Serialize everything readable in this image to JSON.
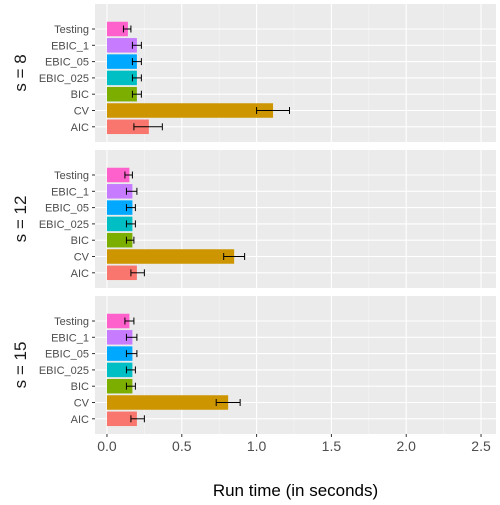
{
  "chart_data": {
    "type": "bar",
    "orientation": "horizontal",
    "with_error_bars": true,
    "xlabel": "Run time (in seconds)",
    "ylabel": "",
    "xlim": [
      -0.08,
      2.6
    ],
    "x_ticks": [
      0,
      0.5,
      1,
      1.5,
      2,
      2.5
    ],
    "x_tick_labels": [
      "0.0",
      "0.5",
      "1.0",
      "1.5",
      "2.0",
      "2.5"
    ],
    "categories": [
      "Testing",
      "EBIC_1",
      "EBIC_05",
      "EBIC_025",
      "BIC",
      "CV",
      "AIC"
    ],
    "colors": {
      "Testing": "#FF61CC",
      "EBIC_1": "#C77CFF",
      "EBIC_05": "#00A9FF",
      "EBIC_025": "#00BFC4",
      "BIC": "#7CAE00",
      "CV": "#CD9600",
      "AIC": "#F8766D"
    },
    "grid": true,
    "legend": "none",
    "panels": [
      {
        "label": "s = 8",
        "values": [
          0.14,
          0.2,
          0.2,
          0.2,
          0.2,
          1.11,
          0.28
        ],
        "err_low": [
          0.11,
          0.17,
          0.17,
          0.17,
          0.17,
          1.0,
          0.18
        ],
        "err_high": [
          0.16,
          0.23,
          0.23,
          0.23,
          0.23,
          1.22,
          0.37
        ]
      },
      {
        "label": "s = 12",
        "values": [
          0.15,
          0.17,
          0.17,
          0.17,
          0.17,
          0.85,
          0.2
        ],
        "err_low": [
          0.12,
          0.13,
          0.13,
          0.13,
          0.13,
          0.78,
          0.16
        ],
        "err_high": [
          0.17,
          0.2,
          0.19,
          0.19,
          0.18,
          0.92,
          0.25
        ]
      },
      {
        "label": "s = 15",
        "values": [
          0.15,
          0.17,
          0.17,
          0.17,
          0.17,
          0.81,
          0.2
        ],
        "err_low": [
          0.12,
          0.13,
          0.13,
          0.13,
          0.13,
          0.73,
          0.16
        ],
        "err_high": [
          0.18,
          0.2,
          0.2,
          0.19,
          0.19,
          0.89,
          0.25
        ]
      }
    ]
  }
}
